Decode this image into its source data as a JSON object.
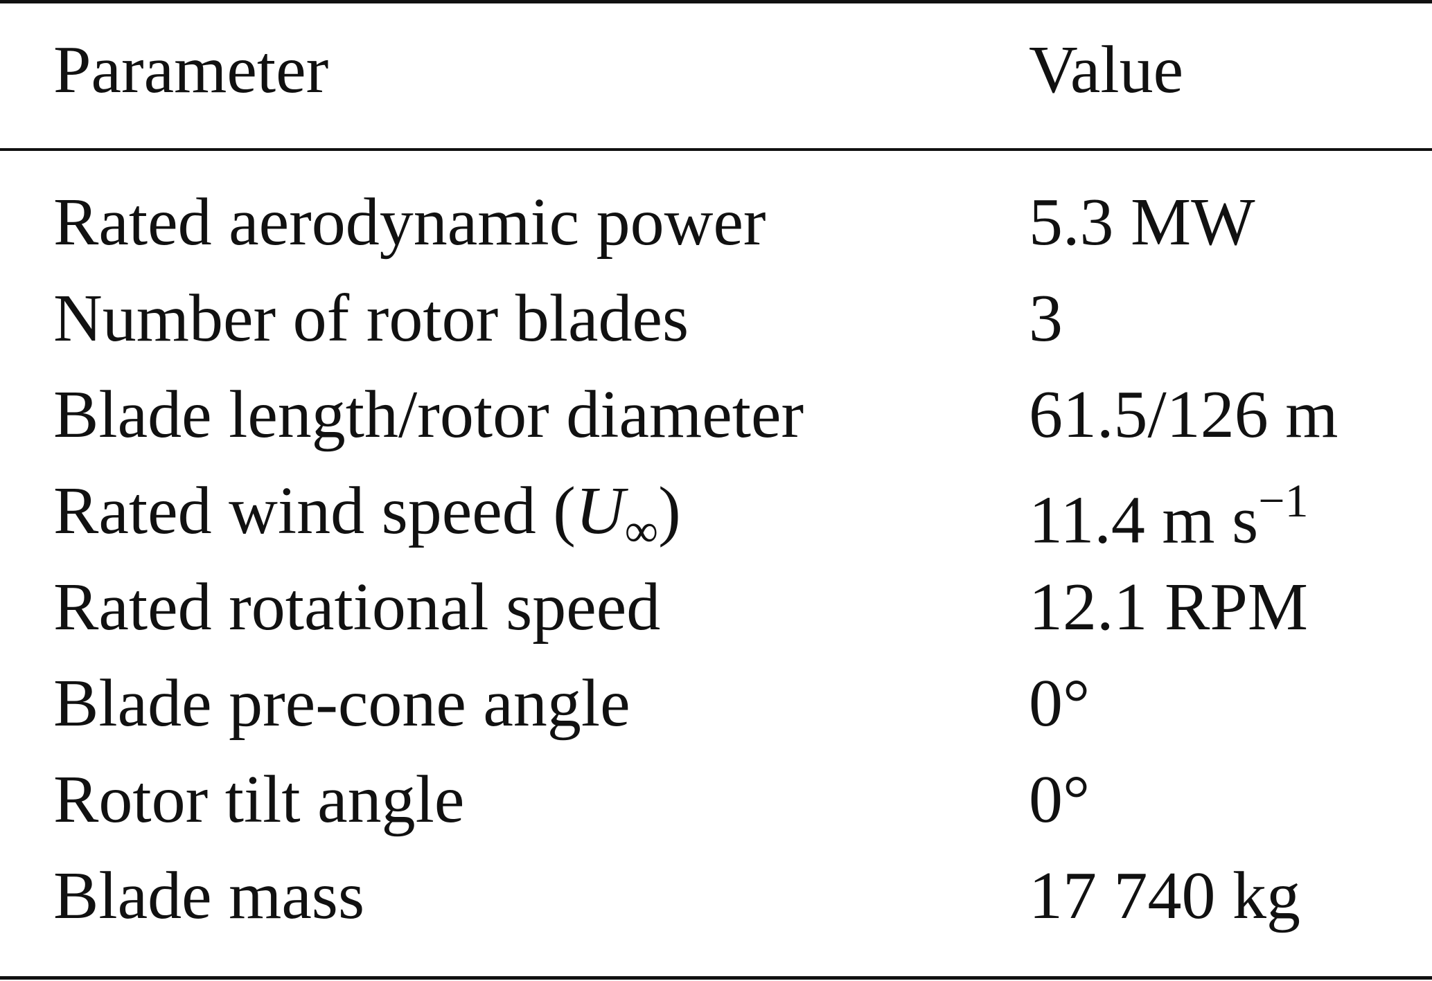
{
  "table": {
    "header": {
      "parameter": "Parameter",
      "value": "Value"
    },
    "rows": [
      {
        "parameter": "Rated aerodynamic power",
        "value": "5.3 MW"
      },
      {
        "parameter": "Number of rotor blades",
        "value": "3"
      },
      {
        "parameter": "Blade length/rotor diameter",
        "value": "61.5/126 m"
      },
      {
        "parameter_prefix": "Rated wind speed (",
        "parameter_symbol": "U",
        "parameter_subscript": "∞",
        "parameter_suffix": ")",
        "value_base": "11.4 m s",
        "value_exponent": "−1"
      },
      {
        "parameter": "Rated rotational speed",
        "value": "12.1 RPM"
      },
      {
        "parameter": "Blade pre-cone angle",
        "value": "0°"
      },
      {
        "parameter": "Rotor tilt angle",
        "value": "0°"
      },
      {
        "parameter": "Blade mass",
        "value": "17 740 kg"
      }
    ]
  }
}
